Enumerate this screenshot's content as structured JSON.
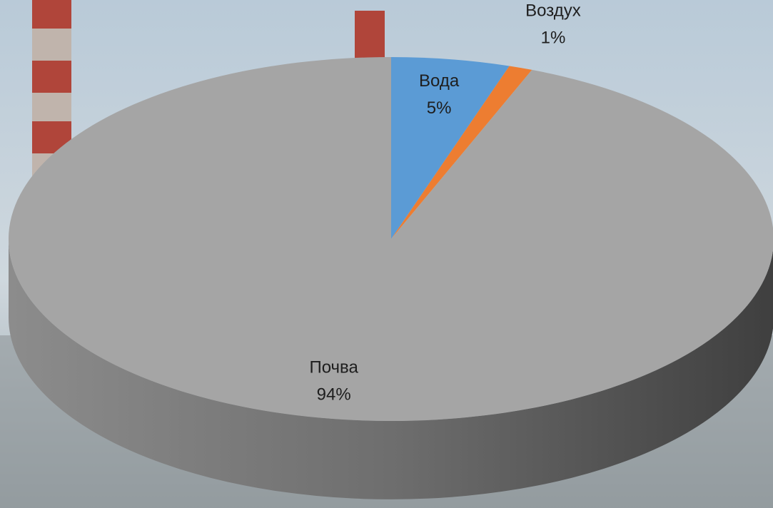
{
  "chart_data": {
    "type": "pie",
    "style": "3d",
    "categories": [
      "Вода",
      "Воздух",
      "Почва"
    ],
    "values": [
      5,
      1,
      94
    ],
    "value_labels": [
      "5%",
      "1%",
      "94%"
    ],
    "colors": [
      "#5b9bd5",
      "#ed7d31",
      "#a5a5a5"
    ]
  }
}
